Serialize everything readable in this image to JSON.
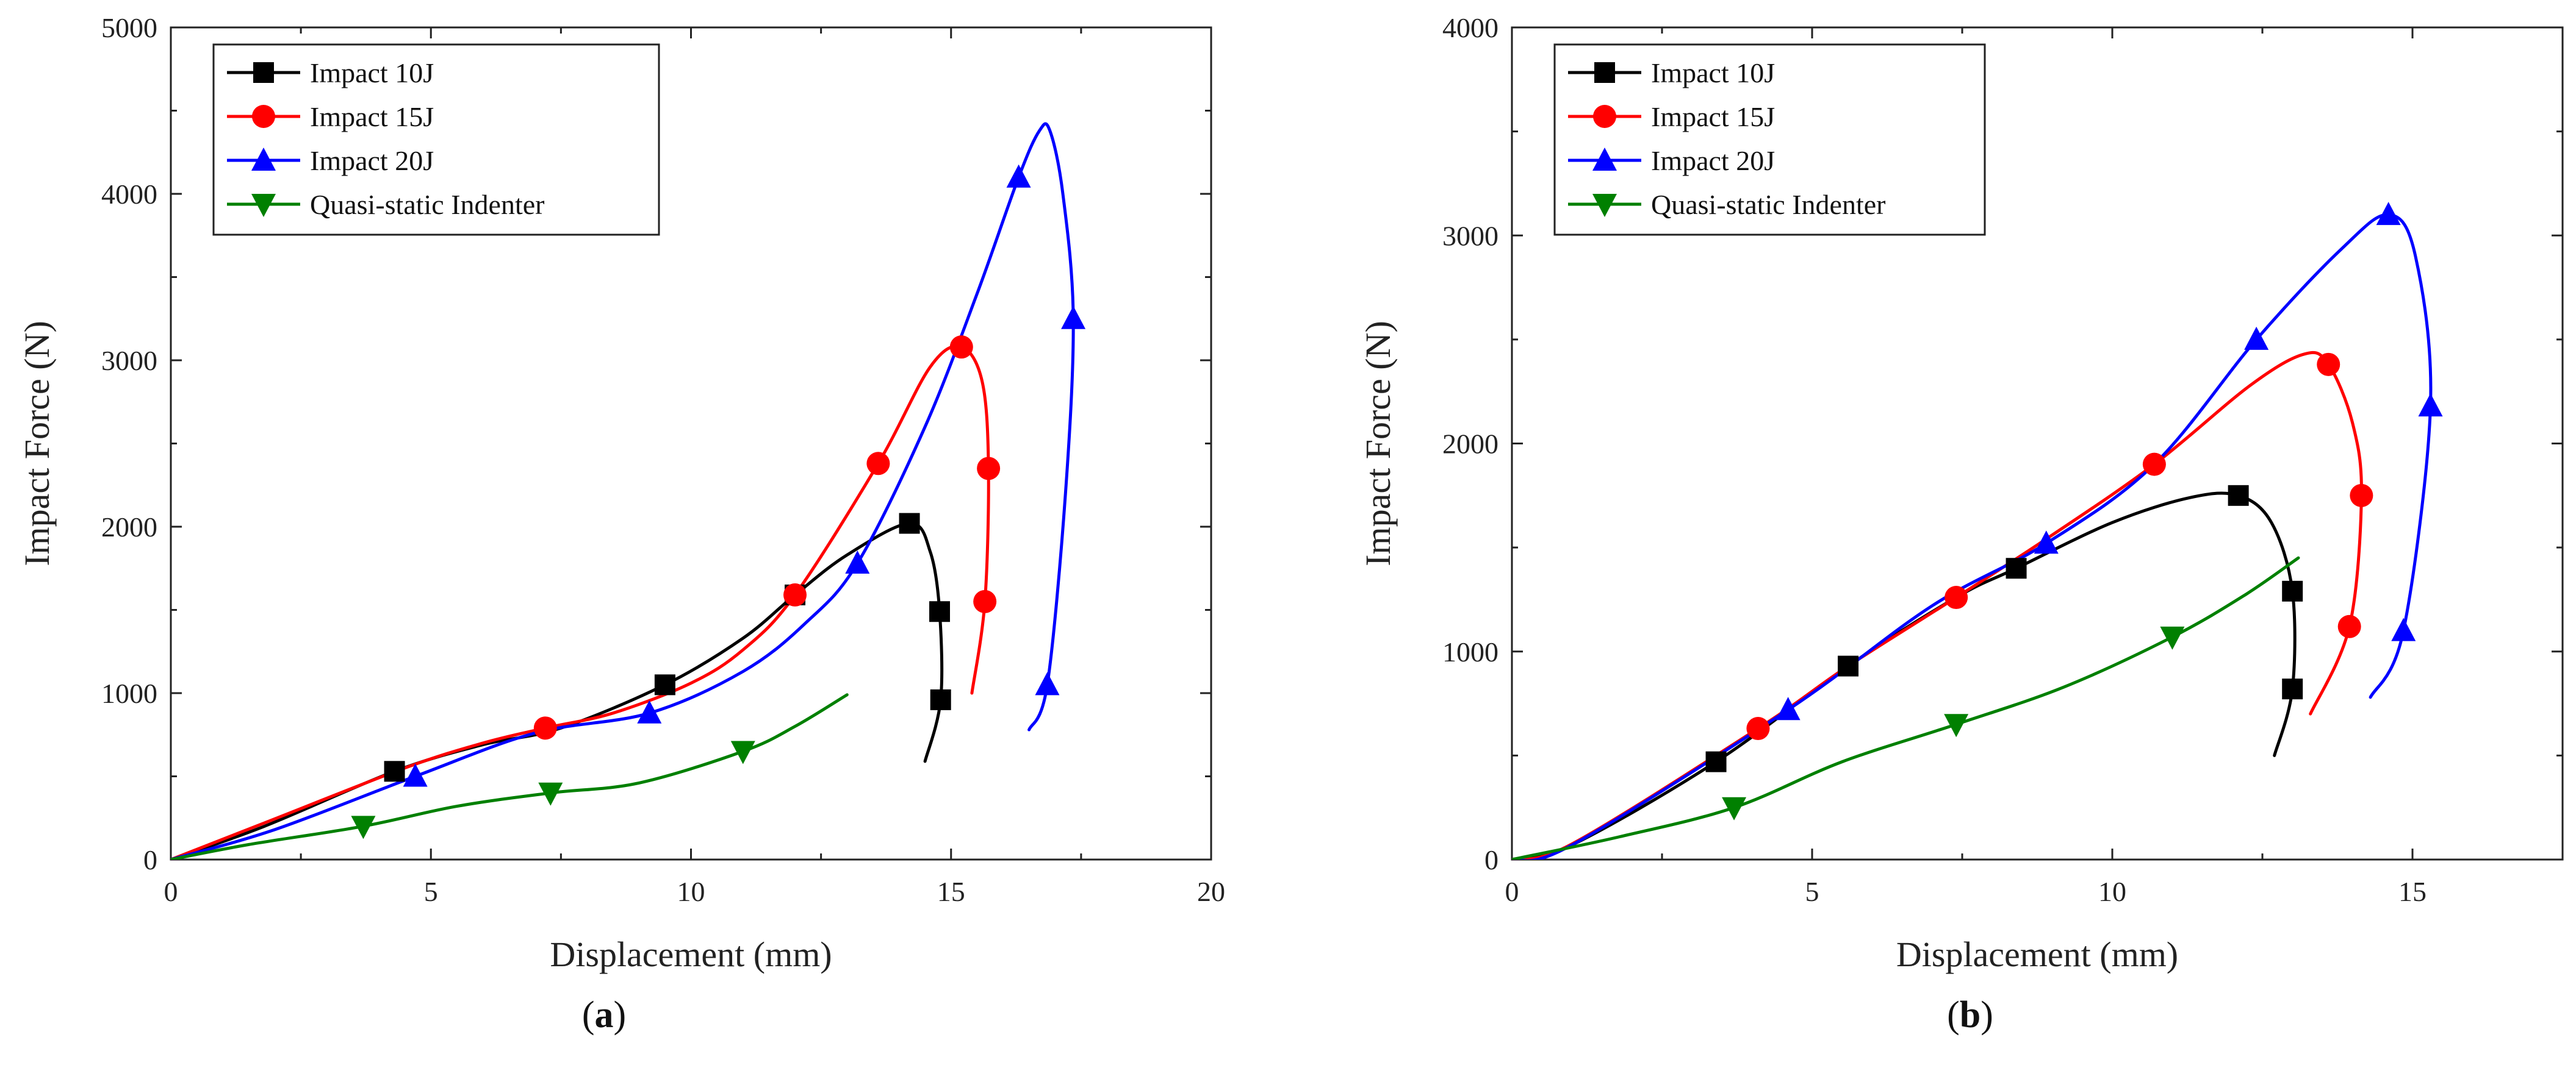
{
  "chart_data": [
    {
      "panel": "a",
      "type": "line",
      "caption": "(a)",
      "xlabel": "Displacement (mm)",
      "ylabel": "Impact Force (N)",
      "xlim": [
        0,
        20
      ],
      "ylim": [
        0,
        5000
      ],
      "xticks": [
        0,
        5,
        10,
        15,
        20
      ],
      "yticks": [
        0,
        1000,
        2000,
        3000,
        4000,
        5000
      ],
      "legend_position": "top-left",
      "series": [
        {
          "name": "Impact 10J",
          "color": "#000000",
          "marker": "square",
          "points": [
            [
              0,
              0
            ],
            [
              1.8,
              200
            ],
            [
              4.3,
              530
            ],
            [
              6,
              690
            ],
            [
              7.5,
              790
            ],
            [
              9.5,
              1050
            ],
            [
              11,
              1330
            ],
            [
              12,
              1590
            ],
            [
              13,
              1830
            ],
            [
              14.2,
              2020
            ],
            [
              14.6,
              1850
            ],
            [
              14.78,
              1490
            ],
            [
              14.8,
              960
            ],
            [
              14.5,
              590
            ]
          ],
          "markers": [
            [
              4.3,
              530
            ],
            [
              9.5,
              1050
            ],
            [
              12,
              1590
            ],
            [
              14.2,
              2020
            ],
            [
              14.78,
              1490
            ],
            [
              14.8,
              960
            ]
          ]
        },
        {
          "name": "Impact 15J",
          "color": "#ff0000",
          "marker": "circle",
          "points": [
            [
              0,
              0
            ],
            [
              1.8,
              220
            ],
            [
              4.5,
              550
            ],
            [
              6,
              700
            ],
            [
              7.2,
              790
            ],
            [
              8.5,
              880
            ],
            [
              10,
              1060
            ],
            [
              11,
              1260
            ],
            [
              12,
              1590
            ],
            [
              13.6,
              2380
            ],
            [
              14.6,
              2960
            ],
            [
              15.2,
              3080
            ],
            [
              15.6,
              2870
            ],
            [
              15.72,
              2350
            ],
            [
              15.65,
              1550
            ],
            [
              15.4,
              1000
            ]
          ],
          "markers": [
            [
              7.2,
              790
            ],
            [
              12,
              1590
            ],
            [
              13.6,
              2380
            ],
            [
              15.2,
              3080
            ],
            [
              15.72,
              2350
            ],
            [
              15.65,
              1550
            ]
          ]
        },
        {
          "name": "Impact 20J",
          "color": "#0000ff",
          "marker": "triangle-up",
          "points": [
            [
              0,
              0
            ],
            [
              2,
              180
            ],
            [
              4.7,
              500
            ],
            [
              7,
              760
            ],
            [
              9.2,
              880
            ],
            [
              11,
              1130
            ],
            [
              12.2,
              1420
            ],
            [
              13.2,
              1780
            ],
            [
              14.5,
              2600
            ],
            [
              15.5,
              3400
            ],
            [
              16.3,
              4100
            ],
            [
              16.7,
              4380
            ],
            [
              16.9,
              4380
            ],
            [
              17.15,
              4000
            ],
            [
              17.35,
              3250
            ],
            [
              17.2,
              2200
            ],
            [
              16.85,
              1050
            ],
            [
              16.5,
              780
            ]
          ],
          "markers": [
            [
              4.7,
              500
            ],
            [
              9.2,
              880
            ],
            [
              13.2,
              1780
            ],
            [
              16.3,
              4100
            ],
            [
              17.35,
              3250
            ],
            [
              16.85,
              1050
            ]
          ]
        },
        {
          "name": "Quasi-static Indenter",
          "color": "#008000",
          "marker": "triangle-down",
          "points": [
            [
              0,
              0
            ],
            [
              1.5,
              90
            ],
            [
              3.7,
              200
            ],
            [
              5.5,
              320
            ],
            [
              7.3,
              400
            ],
            [
              9,
              460
            ],
            [
              11,
              650
            ],
            [
              12,
              800
            ],
            [
              13,
              990
            ]
          ],
          "markers": [
            [
              3.7,
              200
            ],
            [
              7.3,
              400
            ],
            [
              11,
              650
            ]
          ]
        }
      ]
    },
    {
      "panel": "b",
      "type": "line",
      "caption": "(b)",
      "xlabel": "Displacement (mm)",
      "ylabel": "Impact Force (N)",
      "xlim": [
        0,
        17.5
      ],
      "ylim": [
        0,
        4000
      ],
      "xticks": [
        0,
        5,
        10,
        15
      ],
      "yticks": [
        0,
        1000,
        2000,
        3000,
        4000
      ],
      "legend_position": "top-left",
      "series": [
        {
          "name": "Impact 10J",
          "color": "#000000",
          "marker": "square",
          "points": [
            [
              0,
              0
            ],
            [
              1,
              70
            ],
            [
              3.4,
              470
            ],
            [
              5.6,
              930
            ],
            [
              7.4,
              1260
            ],
            [
              8.4,
              1400
            ],
            [
              10,
              1620
            ],
            [
              11.3,
              1740
            ],
            [
              12.1,
              1750
            ],
            [
              12.65,
              1620
            ],
            [
              13,
              1290
            ],
            [
              13,
              820
            ],
            [
              12.7,
              500
            ]
          ],
          "markers": [
            [
              3.4,
              470
            ],
            [
              5.6,
              930
            ],
            [
              8.4,
              1400
            ],
            [
              12.1,
              1750
            ],
            [
              13,
              1290
            ],
            [
              13,
              820
            ]
          ]
        },
        {
          "name": "Impact 15J",
          "color": "#ff0000",
          "marker": "circle",
          "points": [
            [
              0,
              0
            ],
            [
              1,
              75
            ],
            [
              4.1,
              630
            ],
            [
              5.6,
              930
            ],
            [
              7.4,
              1260
            ],
            [
              9,
              1560
            ],
            [
              10.7,
              1900
            ],
            [
              12.3,
              2280
            ],
            [
              13.2,
              2430
            ],
            [
              13.6,
              2380
            ],
            [
              14,
              2100
            ],
            [
              14.15,
              1750
            ],
            [
              13.95,
              1120
            ],
            [
              13.3,
              700
            ]
          ],
          "markers": [
            [
              4.1,
              630
            ],
            [
              7.4,
              1260
            ],
            [
              10.7,
              1900
            ],
            [
              13.6,
              2380
            ],
            [
              14.15,
              1750
            ],
            [
              13.95,
              1120
            ]
          ]
        },
        {
          "name": "Impact 20J",
          "color": "#0000ff",
          "marker": "triangle-up",
          "points": [
            [
              0,
              0
            ],
            [
              1,
              70
            ],
            [
              4.6,
              720
            ],
            [
              7,
              1220
            ],
            [
              8.9,
              1520
            ],
            [
              10.7,
              1900
            ],
            [
              12.4,
              2500
            ],
            [
              13.8,
              2930
            ],
            [
              14.6,
              3100
            ],
            [
              15.05,
              2900
            ],
            [
              15.3,
              2180
            ],
            [
              14.85,
              1100
            ],
            [
              14.3,
              780
            ]
          ],
          "markers": [
            [
              4.6,
              720
            ],
            [
              8.9,
              1520
            ],
            [
              12.4,
              2500
            ],
            [
              14.6,
              3100
            ],
            [
              15.3,
              2180
            ],
            [
              14.85,
              1100
            ]
          ]
        },
        {
          "name": "Quasi-static Indenter",
          "color": "#008000",
          "marker": "triangle-down",
          "points": [
            [
              0,
              0
            ],
            [
              1.8,
              110
            ],
            [
              3.7,
              250
            ],
            [
              5.5,
              470
            ],
            [
              7.4,
              650
            ],
            [
              9.2,
              830
            ],
            [
              11,
              1070
            ],
            [
              12.2,
              1270
            ],
            [
              13.1,
              1450
            ]
          ],
          "markers": [
            [
              3.7,
              250
            ],
            [
              7.4,
              650
            ],
            [
              11,
              1070
            ]
          ]
        }
      ]
    }
  ]
}
